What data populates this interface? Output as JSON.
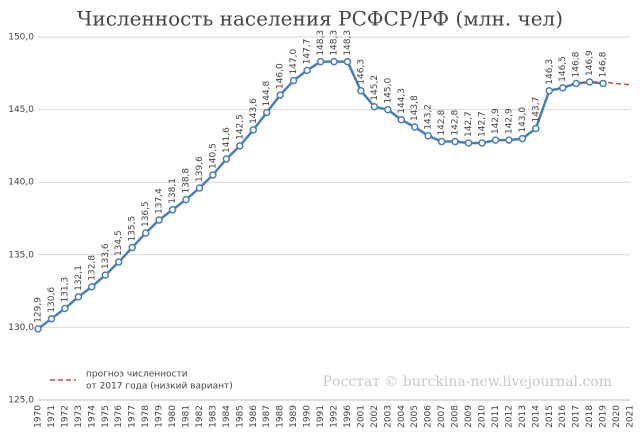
{
  "chart_data": {
    "type": "line",
    "title": "Численность населения РСФСР/РФ (млн. чел)",
    "categories": [
      "1970",
      "1971",
      "1972",
      "1973",
      "1974",
      "1975",
      "1976",
      "1977",
      "1978",
      "1979",
      "1980",
      "1981",
      "1982",
      "1983",
      "1984",
      "1985",
      "1986",
      "1987",
      "1988",
      "1989",
      "1990",
      "1991",
      "1992",
      "1996",
      "2001",
      "2002",
      "2003",
      "2004",
      "2005",
      "2006",
      "2007",
      "2008",
      "2009",
      "2010",
      "2011",
      "2012",
      "2013",
      "2014",
      "2015",
      "2016",
      "2017",
      "2018",
      "2019",
      "2020",
      "2021"
    ],
    "series": [
      {
        "name": null,
        "color": "#4a7ebb",
        "values": [
          129.9,
          130.6,
          131.3,
          132.1,
          132.8,
          133.6,
          134.5,
          135.5,
          136.5,
          137.4,
          138.1,
          138.8,
          139.6,
          140.5,
          141.6,
          142.5,
          143.6,
          144.8,
          146.0,
          147.0,
          147.7,
          148.3,
          148.3,
          148.3,
          146.3,
          145.2,
          145.0,
          144.3,
          143.8,
          143.2,
          142.8,
          142.8,
          142.7,
          142.7,
          142.9,
          142.9,
          143.0,
          143.7,
          146.3,
          146.5,
          146.8,
          146.9,
          146.8,
          null,
          null
        ],
        "value_labels": [
          "129,9",
          "130,6",
          "131,3",
          "132,1",
          "132,8",
          "133,6",
          "134,5",
          "135,5",
          "136,5",
          "137,4",
          "138,1",
          "138,8",
          "139,6",
          "140,5",
          "141,6",
          "142,5",
          "143,6",
          "144,8",
          "146,0",
          "147,0",
          "147,7",
          "148,3",
          "148,3",
          "148,3",
          "146,3",
          "145,2",
          "145,0",
          "144,3",
          "143,8",
          "143,2",
          "142,8",
          "142,8",
          "142,7",
          "142,7",
          "142,9",
          "142,9",
          "143,0",
          "143,7",
          "146,3",
          "146,5",
          "146,8",
          "146,9",
          "146,8",
          null,
          null
        ]
      },
      {
        "name": "прогноз численности от 2017 года (низкий вариант)",
        "color": "#c0504d",
        "dashed": true,
        "values": [
          null,
          null,
          null,
          null,
          null,
          null,
          null,
          null,
          null,
          null,
          null,
          null,
          null,
          null,
          null,
          null,
          null,
          null,
          null,
          null,
          null,
          null,
          null,
          null,
          null,
          null,
          null,
          null,
          null,
          null,
          null,
          null,
          null,
          null,
          null,
          null,
          null,
          null,
          null,
          null,
          146.8,
          146.9,
          146.9,
          146.8,
          146.7
        ]
      }
    ],
    "legend_lines": [
      "прогноз численности",
      "от 2017 года (низкий вариант)"
    ],
    "watermark": "Росстат © burckina-new.livejournal.com",
    "ylim": [
      125,
      150
    ],
    "yticks": [
      {
        "value": 125,
        "label": "125,0"
      },
      {
        "value": 130,
        "label": "130,0"
      },
      {
        "value": 135,
        "label": "135,0"
      },
      {
        "value": 140,
        "label": "140,0"
      },
      {
        "value": 145,
        "label": "145,0"
      },
      {
        "value": 150,
        "label": "150,0"
      }
    ],
    "grid": true
  }
}
